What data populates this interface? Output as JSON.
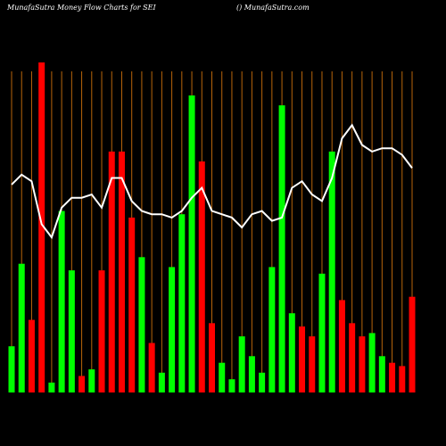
{
  "chart_data": {
    "type": "bar",
    "title": "MunafaSutra  Money Flow  Charts for SEI",
    "subtitle": "() MunafaSutra.com",
    "categories": [
      null,
      null,
      null,
      null,
      null,
      null,
      null,
      null,
      null,
      null,
      null,
      null,
      null,
      null,
      null,
      null,
      null,
      null,
      null,
      null,
      null,
      null,
      null,
      null,
      null,
      null,
      null,
      null,
      null,
      null,
      null,
      null,
      null,
      null,
      null,
      null,
      null,
      null,
      null,
      null,
      null
    ],
    "values": [
      14,
      39,
      22,
      100,
      3,
      55,
      37,
      5,
      7,
      37,
      73,
      73,
      53,
      41,
      15,
      6,
      38,
      54,
      90,
      70,
      21,
      9,
      4,
      17,
      11,
      6,
      38,
      87,
      24,
      20,
      17,
      36,
      73,
      28,
      21,
      17,
      18,
      11,
      9,
      8,
      29
    ],
    "colors": [
      "#00ff00",
      "#00ff00",
      "#ff0000",
      "#ff0000",
      "#00ff00",
      "#00ff00",
      "#00ff00",
      "#ff0000",
      "#00ff00",
      "#ff0000",
      "#ff0000",
      "#ff0000",
      "#ff0000",
      "#00ff00",
      "#ff0000",
      "#00ff00",
      "#00ff00",
      "#00ff00",
      "#00ff00",
      "#ff0000",
      "#ff0000",
      "#00ff00",
      "#00ff00",
      "#00ff00",
      "#00ff00",
      "#00ff00",
      "#00ff00",
      "#00ff00",
      "#00ff00",
      "#ff0000",
      "#ff0000",
      "#00ff00",
      "#00ff00",
      "#ff0000",
      "#ff0000",
      "#ff0000",
      "#00ff00",
      "#00ff00",
      "#ff0000",
      "#ff0000",
      "#ff0000"
    ],
    "line": {
      "color": "#ffffff",
      "values": [
        63,
        66,
        64,
        51,
        47,
        56,
        59,
        59,
        60,
        56,
        65,
        65,
        58,
        55,
        54,
        54,
        53,
        55,
        59,
        62,
        55,
        54,
        53,
        50,
        54,
        55,
        52,
        53,
        62,
        64,
        60,
        58,
        65,
        77,
        81,
        75,
        73,
        74,
        74,
        72,
        68
      ]
    },
    "grid_color": "#b8650a",
    "ylim": [
      0,
      100
    ]
  }
}
